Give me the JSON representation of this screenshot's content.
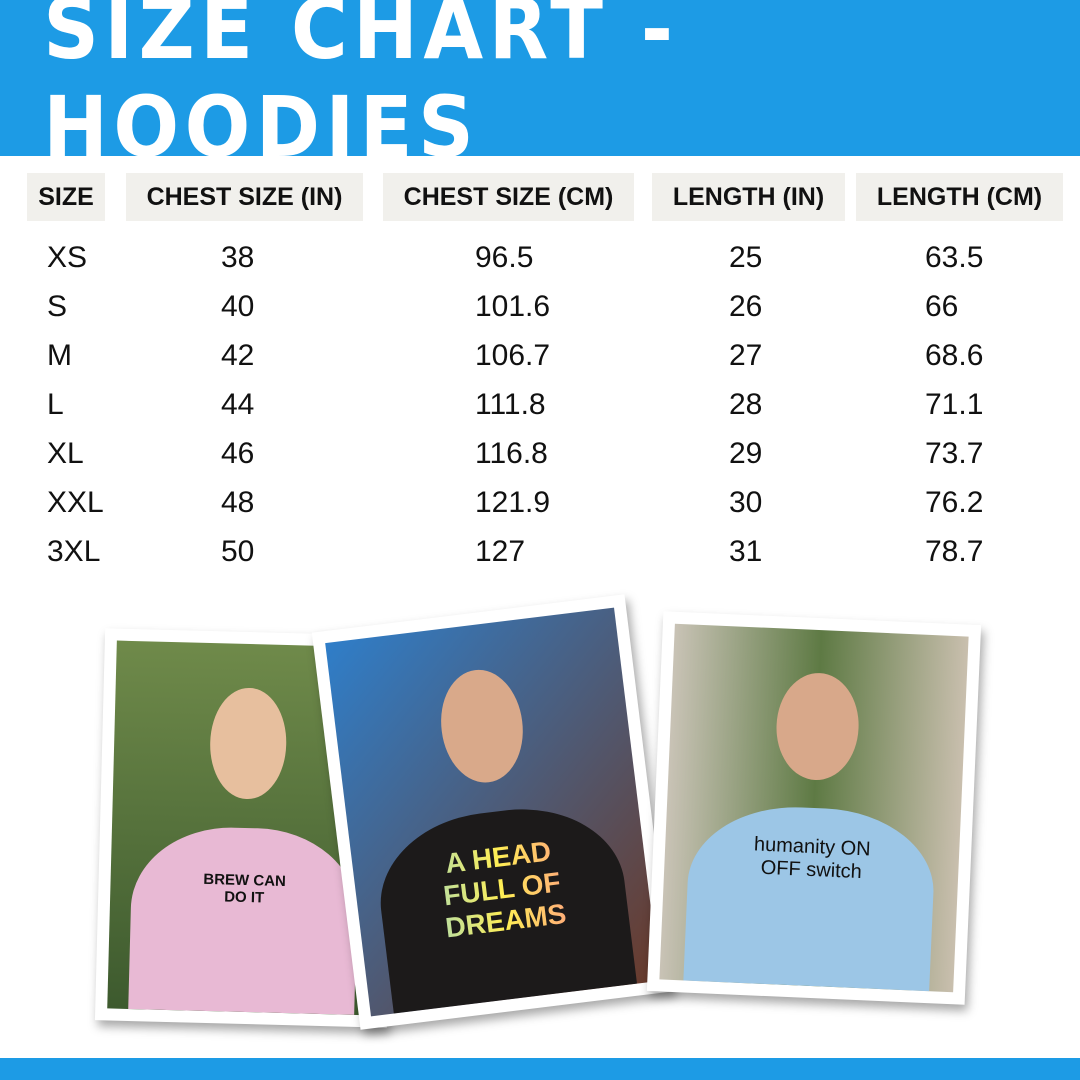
{
  "title": "SIZE CHART - HOODIES",
  "colors": {
    "accent": "#1d9be5",
    "header_cell": "#f1f0ec"
  },
  "table": {
    "headers": [
      "SIZE",
      "CHEST SIZE (IN)",
      "CHEST SIZE (CM)",
      "LENGTH (IN)",
      "LENGTH (CM)"
    ],
    "rows": [
      [
        "XS",
        "38",
        "96.5",
        "25",
        "63.5"
      ],
      [
        "S",
        "40",
        "101.6",
        "26",
        "66"
      ],
      [
        "M",
        "42",
        "106.7",
        "27",
        "68.6"
      ],
      [
        "L",
        "44",
        "111.8",
        "28",
        "71.1"
      ],
      [
        "XL",
        "46",
        "116.8",
        "29",
        "73.7"
      ],
      [
        "XXL",
        "48",
        "121.9",
        "30",
        "76.2"
      ],
      [
        "3XL",
        "50",
        "127",
        "31",
        "78.7"
      ]
    ]
  },
  "photos": [
    {
      "hoodie_color": "#e8b9d4",
      "print": "BREW CAN DO IT"
    },
    {
      "hoodie_color": "#1c1a1a",
      "print": "A HEAD FULL OF DREAMS"
    },
    {
      "hoodie_color": "#9cc6e6",
      "print": "humanity ON OFF switch"
    }
  ]
}
